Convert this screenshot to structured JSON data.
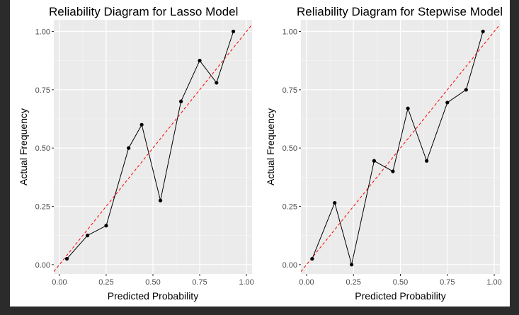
{
  "chart_data": [
    {
      "type": "line",
      "title": "Reliability Diagram for Lasso Model",
      "xlabel": "Predicted Probability",
      "ylabel": "Actual Frequency",
      "xlim": [
        -0.03,
        1.03
      ],
      "ylim": [
        -0.04,
        1.05
      ],
      "xticks": [
        0.0,
        0.25,
        0.5,
        0.75,
        1.0
      ],
      "xtick_labels": [
        "0.00",
        "0.25",
        "0.50",
        "0.75",
        "1.00"
      ],
      "yticks": [
        0.0,
        0.25,
        0.5,
        0.75,
        1.0
      ],
      "ytick_labels": [
        "0.00",
        "0.25",
        "0.50",
        "0.75",
        "1.00"
      ],
      "grid": true,
      "series": [
        {
          "x": [
            0.04,
            0.15,
            0.25,
            0.37,
            0.44,
            0.54,
            0.65,
            0.75,
            0.84,
            0.93
          ],
          "y": [
            0.025,
            0.125,
            0.167,
            0.5,
            0.6,
            0.275,
            0.7,
            0.875,
            0.78,
            1.0
          ],
          "color": "#000000"
        }
      ],
      "reference_line": {
        "slope": 1,
        "intercept": 0,
        "color": "#ff0000",
        "style": "dashed"
      }
    },
    {
      "type": "line",
      "title": "Reliability Diagram for Stepwise Model",
      "xlabel": "Predicted Probability",
      "ylabel": "Actual Frequency",
      "xlim": [
        -0.03,
        1.03
      ],
      "ylim": [
        -0.04,
        1.05
      ],
      "xticks": [
        0.0,
        0.25,
        0.5,
        0.75,
        1.0
      ],
      "xtick_labels": [
        "0.00",
        "0.25",
        "0.50",
        "0.75",
        "1.00"
      ],
      "yticks": [
        0.0,
        0.25,
        0.5,
        0.75,
        1.0
      ],
      "ytick_labels": [
        "0.00",
        "0.25",
        "0.50",
        "0.75",
        "1.00"
      ],
      "grid": true,
      "series": [
        {
          "x": [
            0.03,
            0.15,
            0.24,
            0.36,
            0.46,
            0.54,
            0.64,
            0.75,
            0.85,
            0.94
          ],
          "y": [
            0.025,
            0.265,
            0.0,
            0.445,
            0.4,
            0.67,
            0.445,
            0.695,
            0.75,
            1.0
          ],
          "color": "#000000"
        }
      ],
      "reference_line": {
        "slope": 1,
        "intercept": 0,
        "color": "#ff0000",
        "style": "dashed"
      }
    }
  ]
}
